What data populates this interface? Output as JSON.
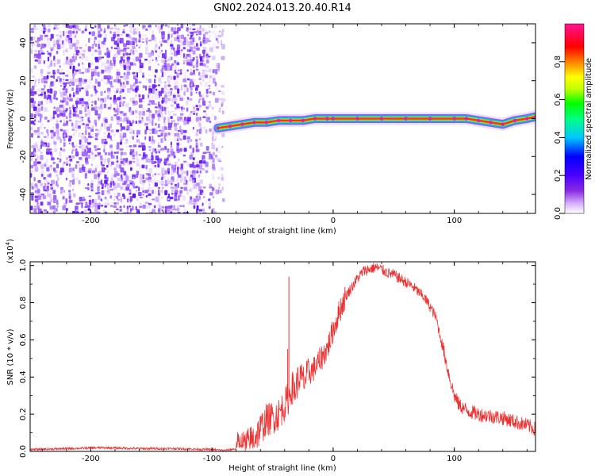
{
  "title": "GN02.2024.013.20.40.R14",
  "colors": {
    "snr_line": "#ee3030",
    "spectrogram_noise": "#7a2bf0",
    "spectrogram_signal": "#ff2a2a"
  },
  "chart_data": [
    {
      "type": "heatmap",
      "xlabel": "Height of straight line (km)",
      "ylabel": "Frequency (Hz)",
      "xlim": [
        -250,
        167
      ],
      "ylim": [
        -50,
        50
      ],
      "xticks": [
        -200,
        -100,
        0,
        100
      ],
      "yticks": [
        -40,
        -20,
        0,
        20,
        40
      ],
      "colorbar": {
        "label": "Normalized spectral amplitude",
        "range": [
          0,
          1
        ],
        "ticks": [
          "0.0",
          "0.2",
          "0.4",
          "0.6",
          "0.8"
        ],
        "tick_values": [
          0.0,
          0.2,
          0.4,
          0.6,
          0.8
        ],
        "colors": [
          "#ffffff",
          "#d9b3ff",
          "#8a2be2",
          "#4a00ff",
          "#0000ff",
          "#00c8ff",
          "#00ff80",
          "#00ff00",
          "#c8ff00",
          "#ffff00",
          "#ff8000",
          "#ff0000",
          "#ff1493"
        ]
      },
      "noise_region": {
        "x_start": -250,
        "x_end": -95
      },
      "signal_trace": {
        "x": [
          -95,
          -85,
          -75,
          -65,
          -55,
          -45,
          -35,
          -25,
          -15,
          -5,
          0,
          20,
          40,
          60,
          80,
          100,
          110,
          120,
          130,
          140,
          150,
          160,
          167
        ],
        "y": [
          -5,
          -4,
          -3,
          -2,
          -2,
          -1,
          -1,
          -1,
          0,
          0,
          0,
          0,
          0,
          0,
          0,
          0,
          0,
          -1,
          -2,
          -3,
          -1,
          0,
          1
        ]
      }
    },
    {
      "type": "line",
      "xlabel": "Height of straight line (km)",
      "ylabel": "SNR (10 * v/v)",
      "y_multiplier": "(x10",
      "y_multiplier_exp": "4",
      "y_multiplier_close": ")",
      "xlim": [
        -250,
        167
      ],
      "ylim": [
        0,
        1.02
      ],
      "xticks": [
        -200,
        -100,
        0,
        100
      ],
      "yticks": [
        "0.0",
        "0.2",
        "0.4",
        "0.6",
        "0.8",
        "1.0"
      ],
      "ytick_values": [
        0.0,
        0.2,
        0.4,
        0.6,
        0.8,
        1.0
      ],
      "series": [
        {
          "x": [
            -250,
            -220,
            -190,
            -160,
            -130,
            -100,
            -90,
            -80,
            -70,
            -62,
            -55,
            -50,
            -45,
            -40,
            -36,
            -34,
            -32,
            -28,
            -24,
            -20,
            -15,
            -10,
            -5,
            0,
            5,
            10,
            15,
            20,
            25,
            30,
            35,
            40,
            45,
            50,
            55,
            60,
            65,
            70,
            75,
            80,
            85,
            88,
            92,
            96,
            100,
            104,
            110,
            120,
            130,
            140,
            150,
            160,
            167
          ],
          "y": [
            0.01,
            0.015,
            0.02,
            0.015,
            0.015,
            0.01,
            0.005,
            0.015,
            0.04,
            0.1,
            0.17,
            0.18,
            0.2,
            0.25,
            0.3,
            0.35,
            0.32,
            0.4,
            0.38,
            0.42,
            0.45,
            0.5,
            0.55,
            0.65,
            0.75,
            0.83,
            0.88,
            0.93,
            0.97,
            0.98,
            0.99,
            0.98,
            0.96,
            0.95,
            0.93,
            0.91,
            0.89,
            0.86,
            0.83,
            0.78,
            0.72,
            0.63,
            0.52,
            0.4,
            0.3,
            0.25,
            0.22,
            0.2,
            0.19,
            0.18,
            0.16,
            0.14,
            0.12
          ]
        }
      ],
      "spikes": [
        {
          "x": -36.5,
          "y": 0.94
        },
        {
          "x": -37.5,
          "y": 0.55
        }
      ]
    }
  ]
}
